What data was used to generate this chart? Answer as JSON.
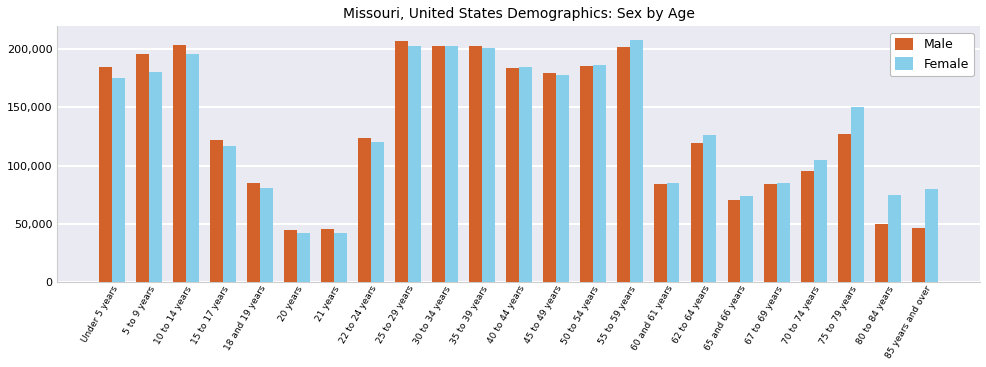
{
  "title": "Missouri, United States Demographics: Sex by Age",
  "categories": [
    "Under 5 years",
    "5 to 9 years",
    "10 to 14 years",
    "15 to 17 years",
    "18 and 19 years",
    "20 years",
    "21 years",
    "22 to 24 years",
    "25 to 29 years",
    "30 to 34 years",
    "35 to 39 years",
    "40 to 44 years",
    "45 to 49 years",
    "50 to 54 years",
    "55 to 59 years",
    "60 and 61 years",
    "62 to 64 years",
    "65 and 66 years",
    "67 to 69 years",
    "70 to 74 years",
    "75 to 79 years",
    "80 to 84 years",
    "85 years and over"
  ],
  "male": [
    185000,
    196000,
    204000,
    122000,
    85000,
    44000,
    45000,
    124000,
    207000,
    203000,
    203000,
    184000,
    180000,
    186000,
    202000,
    84000,
    119000,
    70000,
    84000,
    95000,
    127000,
    50000,
    46000
  ],
  "female": [
    175000,
    181000,
    196000,
    117000,
    81000,
    42000,
    42000,
    120000,
    203000,
    203000,
    201000,
    185000,
    178000,
    187000,
    208000,
    85000,
    126000,
    74000,
    85000,
    105000,
    150000,
    75000,
    80000
  ],
  "male_color": "#d2622a",
  "female_color": "#87ceeb",
  "bar_width": 0.35,
  "ylim": [
    0,
    220000
  ],
  "yticks": [
    0,
    50000,
    100000,
    150000,
    200000
  ],
  "plot_bg_color": "#eaeaf2",
  "fig_bg_color": "#ffffff",
  "legend_labels": [
    "Male",
    "Female"
  ],
  "title_fontsize": 10,
  "xtick_fontsize": 6.5,
  "ytick_fontsize": 8,
  "grid_color": "#ffffff",
  "grid_linewidth": 1.5,
  "spine_color": "#cccccc"
}
